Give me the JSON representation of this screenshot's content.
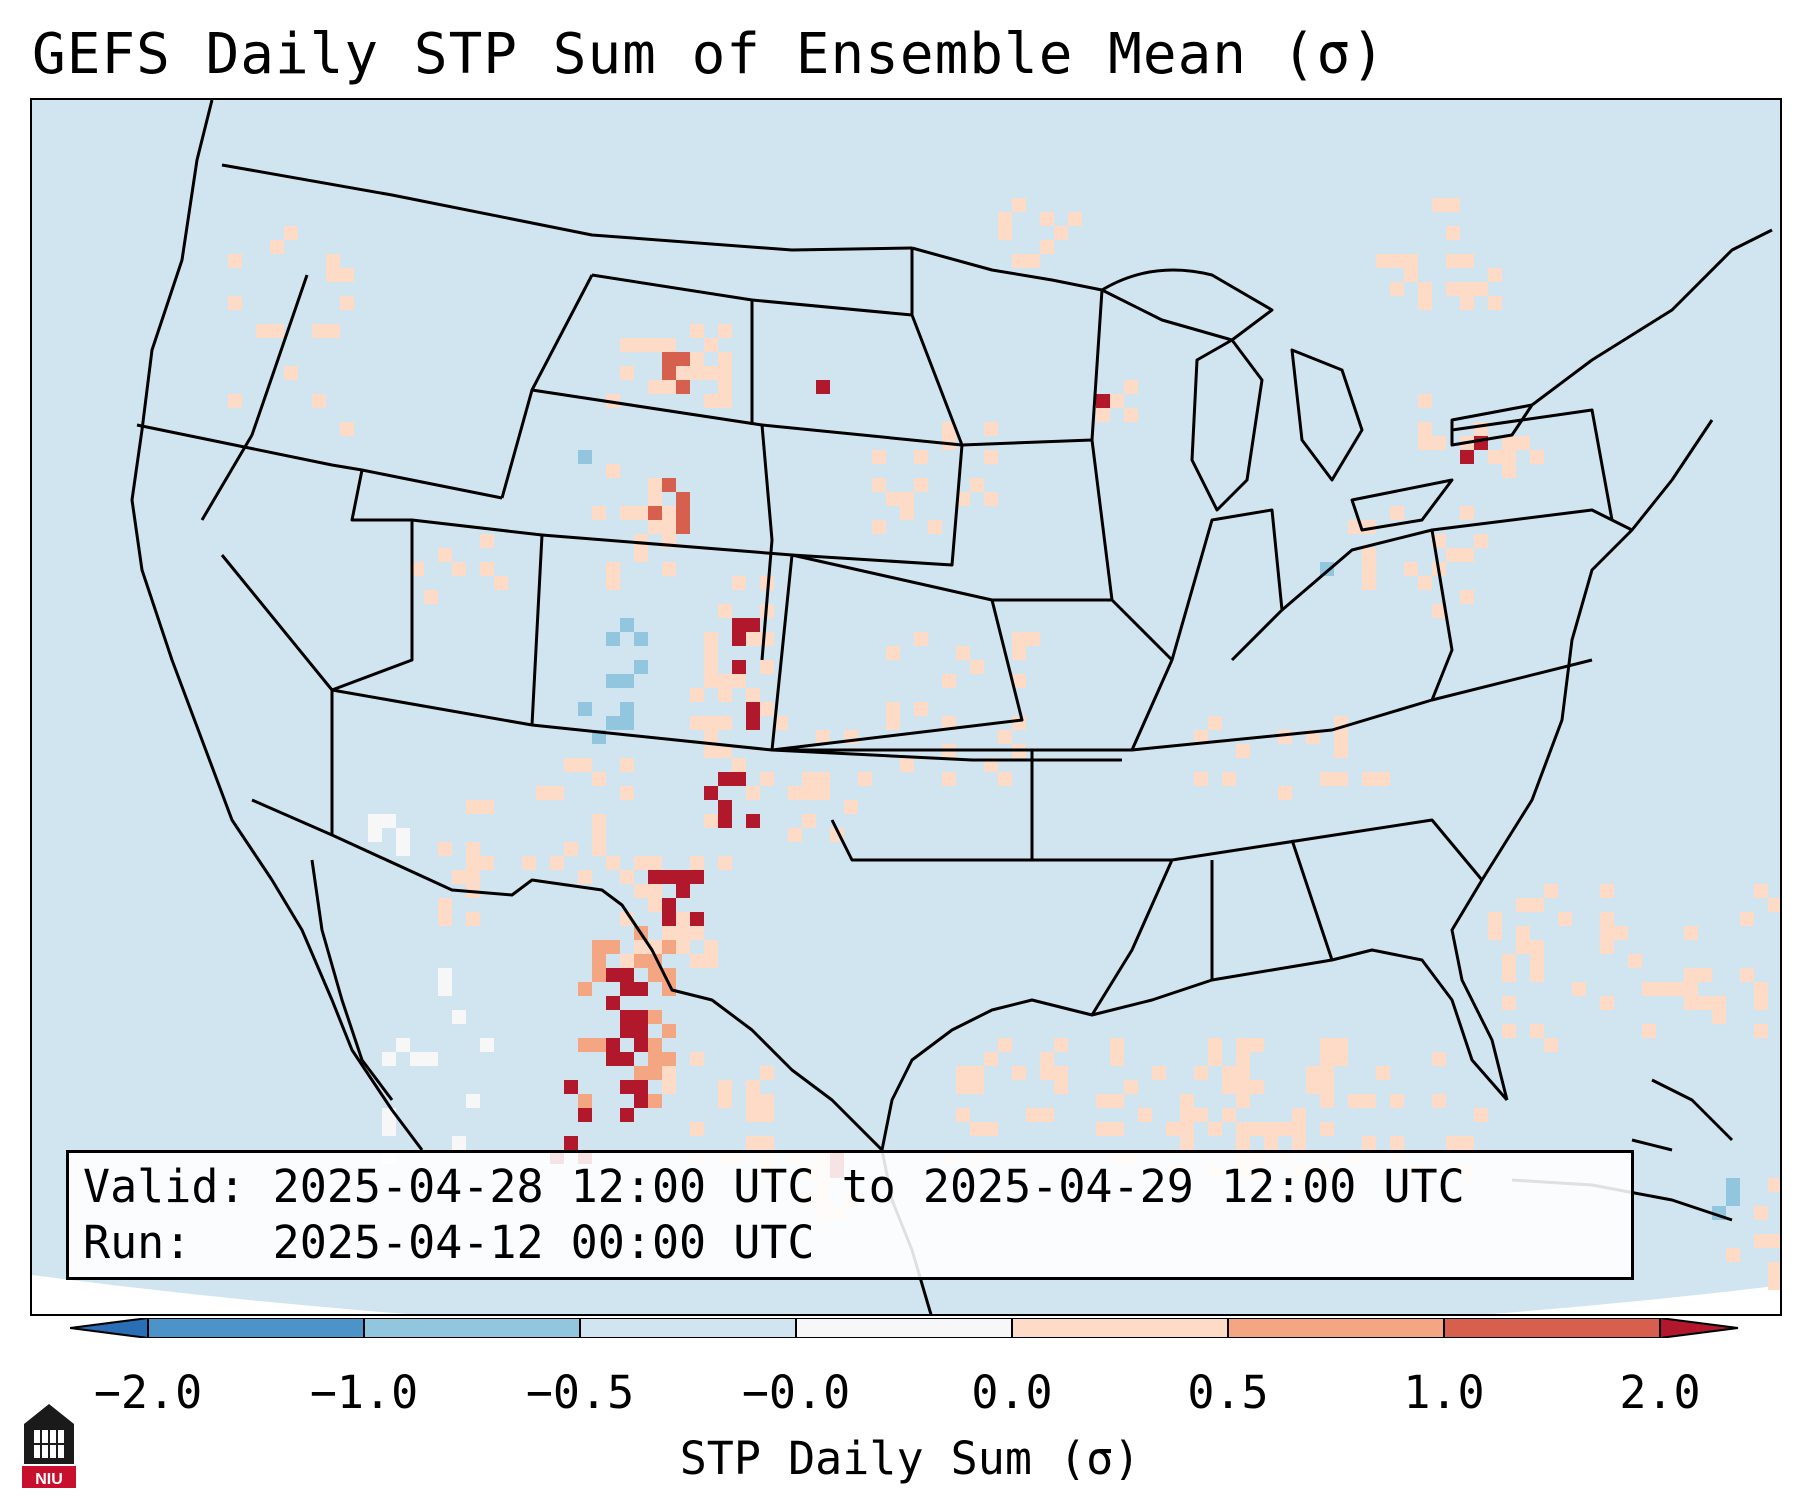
{
  "title": "GEFS Daily STP Sum of Ensemble Mean (σ)",
  "info_box": {
    "valid_line": "Valid: 2025-04-28 12:00 UTC to 2025-04-29 12:00 UTC",
    "run_line": "Run:   2025-04-12 00:00 UTC"
  },
  "colorbar": {
    "label": "STP Daily Sum (σ)",
    "ticks": [
      "−2.0",
      "−1.0",
      "−0.5",
      "−0.0",
      "0.0",
      "0.5",
      "1.0",
      "2.0"
    ],
    "colors": [
      "#2a6fb5",
      "#4b93c9",
      "#92c5de",
      "#d1e5f0",
      "#f7f7f7",
      "#fddbc7",
      "#f4a582",
      "#d6604d",
      "#b2182b"
    ]
  },
  "map": {
    "background_color": "#d1e5f0",
    "neutral_color": "#f7f7f7",
    "anomaly_colors": {
      "light_red": "#fddbc7",
      "mid_red": "#f4a582",
      "red": "#d6604d",
      "dark_red": "#b2182b",
      "light_blue": "#92c5de",
      "mid_blue": "#4b93c9"
    }
  },
  "logo": {
    "text": "NIU"
  }
}
